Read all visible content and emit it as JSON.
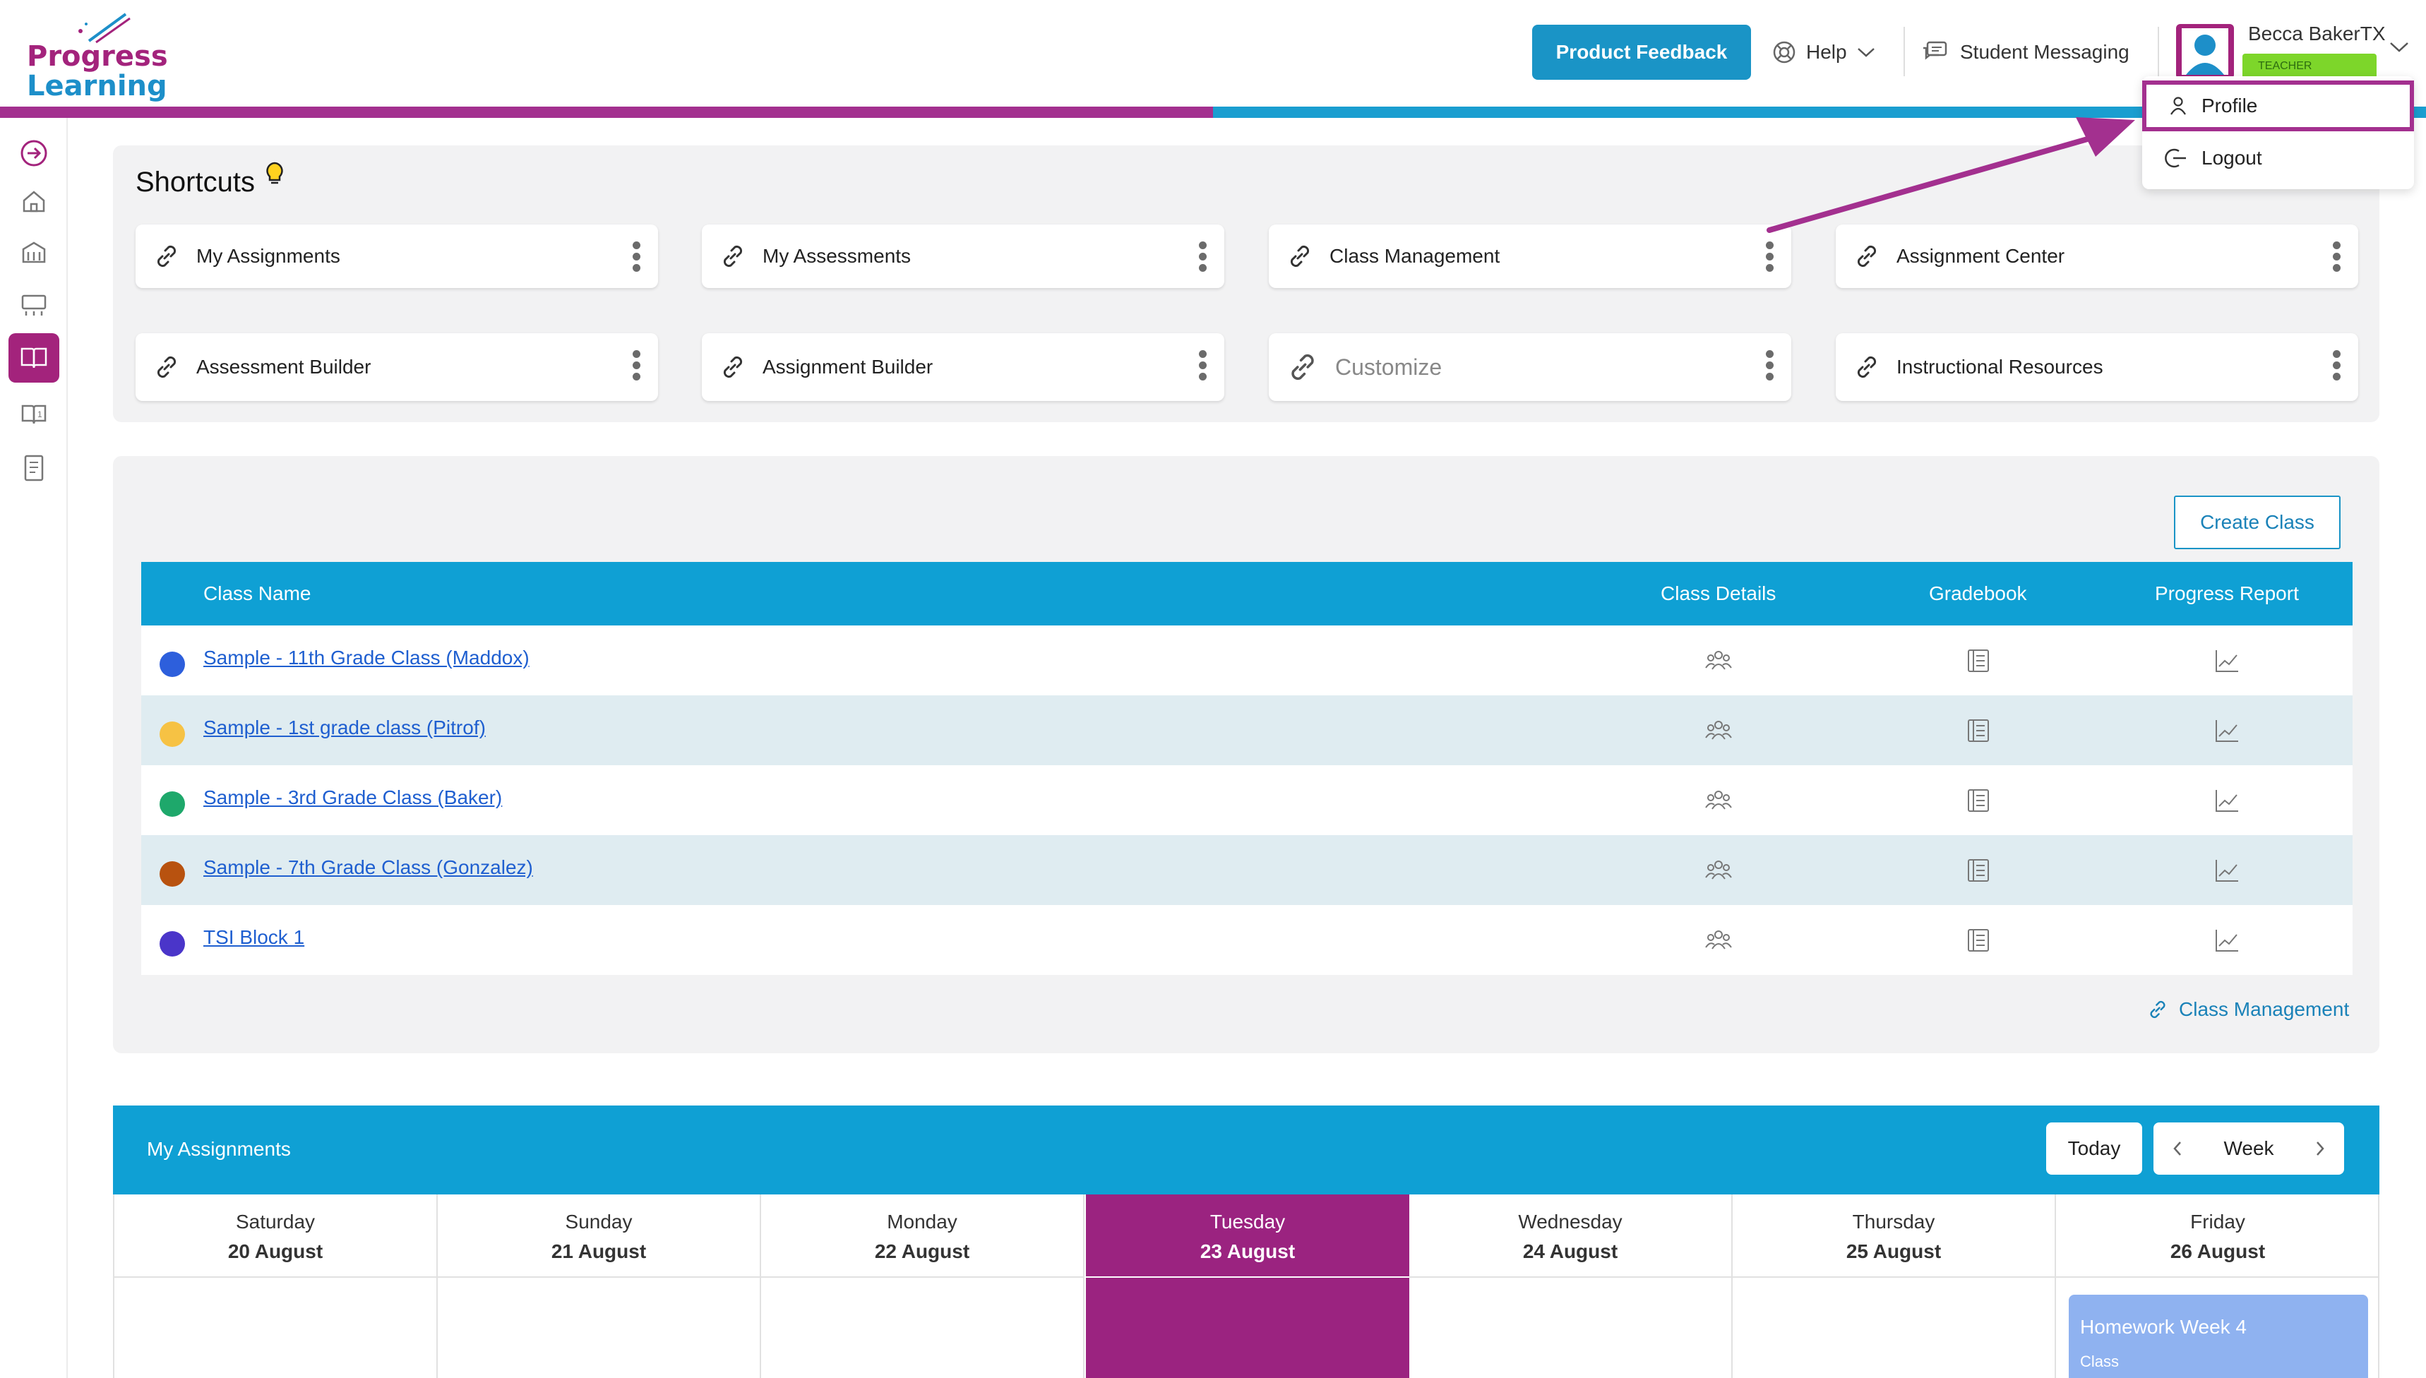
{
  "logo": {
    "line1": "Progress",
    "line2": "Learning"
  },
  "header": {
    "feedback_label": "Product Feedback",
    "help_label": "Help",
    "messaging_label": "Student Messaging",
    "user_name": "Becca BakerTX",
    "role_badge": "TEACHER"
  },
  "user_menu": {
    "items": [
      {
        "label": "Profile",
        "icon": "person-icon"
      },
      {
        "label": "Logout",
        "icon": "logout-icon"
      }
    ]
  },
  "colors": {
    "brand_magenta": "#a3308f",
    "brand_blue": "#1a9ed0",
    "table_header": "#0fa0d4",
    "row_alt": "#dfecf1"
  },
  "shortcuts": {
    "title": "Shortcuts",
    "items": [
      {
        "label": "My Assignments"
      },
      {
        "label": "My Assessments"
      },
      {
        "label": "Class Management"
      },
      {
        "label": "Assignment Center"
      },
      {
        "label": "Assessment Builder"
      },
      {
        "label": "Assignment Builder"
      },
      {
        "label": "Customize"
      },
      {
        "label": "Instructional Resources"
      }
    ]
  },
  "classes": {
    "create_label": "Create Class",
    "columns": [
      "Class Name",
      "Class Details",
      "Gradebook",
      "Progress Report"
    ],
    "rows": [
      {
        "name": "Sample - 11th Grade Class (Maddox)",
        "color": "#2d5fdc"
      },
      {
        "name": "Sample - 1st grade class (Pitrof)",
        "color": "#f6c244"
      },
      {
        "name": "Sample - 3rd Grade Class (Baker)",
        "color": "#1ea86b"
      },
      {
        "name": "Sample - 7th Grade Class (Gonzalez)",
        "color": "#b8520f"
      },
      {
        "name": "TSI Block 1",
        "color": "#4a35c9"
      }
    ],
    "footer_link": "Class Management"
  },
  "assignments": {
    "title": "My Assignments",
    "today_label": "Today",
    "view_label": "Week",
    "days": [
      {
        "name": "Saturday",
        "date": "20 August"
      },
      {
        "name": "Sunday",
        "date": "21 August"
      },
      {
        "name": "Monday",
        "date": "22 August"
      },
      {
        "name": "Tuesday",
        "date": "23 August"
      },
      {
        "name": "Wednesday",
        "date": "24 August"
      },
      {
        "name": "Thursday",
        "date": "25 August"
      },
      {
        "name": "Friday",
        "date": "26 August"
      }
    ],
    "event": {
      "title": "Homework Week 4",
      "subtitle": "Class"
    }
  }
}
